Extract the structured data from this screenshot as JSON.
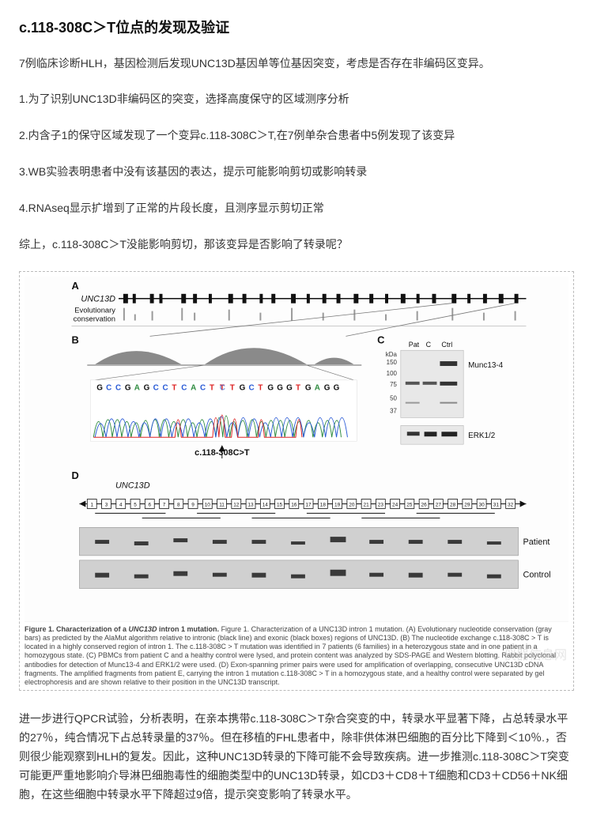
{
  "title": "c.118-308C＞T位点的发现及验证",
  "intro": "7例临床诊断HLH，基因检测后发现UNC13D基因单等位基因突变，考虑是否存在非编码区变异。",
  "points": [
    "1.为了识别UNC13D非编码区的突变，选择高度保守的区域测序分析",
    "2.内含子1的保守区域发现了一个变异c.118-308C＞T,在7例单杂合患者中5例发现了该变异",
    "3.WB实验表明患者中没有该基因的表达，提示可能影响剪切或影响转录",
    "4.RNAseq显示扩增到了正常的片段长度，且测序显示剪切正常"
  ],
  "summary": "综上，c.118-308C＞T没能影响剪切，那该变异是否影响了转录呢？",
  "figure": {
    "panelA": {
      "label": "A",
      "geneLabel": "UNC13D",
      "consLabel": "Evolutionary\nconservation"
    },
    "panelB": {
      "label": "B",
      "seq": "GCCGAGCCTCACTCTGCTGGGTGAGG",
      "locus": "c.118-308C>T",
      "baseColors": {
        "A": "#2e8b3f",
        "C": "#2a5bd6",
        "G": "#111",
        "T": "#d22"
      }
    },
    "panelC": {
      "label": "C",
      "lanes": [
        "Pat",
        "C",
        "Ctrl"
      ],
      "kDa": [
        150,
        100,
        75,
        50,
        37
      ],
      "bands": [
        "Munc13-4",
        "ERK1/2"
      ]
    },
    "panelD": {
      "label": "D",
      "geneLabel": "UNC13D",
      "exons": [
        1,
        3,
        4,
        5,
        6,
        7,
        8,
        9,
        10,
        11,
        12,
        13,
        14,
        15,
        16,
        17,
        18,
        19,
        20,
        21,
        23,
        24,
        25,
        26,
        27,
        28,
        29,
        30,
        31,
        32
      ],
      "rows": [
        "Patient",
        "Control"
      ]
    },
    "caption": "Figure 1. Characterization of a UNC13D intron 1 mutation. (A) Evolutionary nucleotide conservation (gray bars) as predicted by the AlaMut algorithm relative to intronic (black line) and exonic (black boxes) regions of UNC13D. (B) The nucleotide exchange c.118-308C > T is located in a highly conserved region of intron 1. The c.118-308C > T mutation was identified in 7 patients (6 families) in a heterozygous state and in one patient in a homozygous state. (C) PBMCs from patient C and a healthy control were lysed, and protein content was analyzed by SDS-PAGE and Western blotting. Rabbit polyclonal antibodies for detection of Munc13-4 and ERK1/2 were used. (D) Exon-spanning primer pairs were used for amplification of overlapping, consecutive UNC13D cDNA fragments. The amplified fragments from patient E, carrying the intron 1 mutation c.118-308C > T in a homozygous state, and a healthy control were separated by gel electrophoresis and are shown relative to their position in the UNC13D transcript.",
    "colors": {
      "lineGray": "#777",
      "lightGray": "#bfbfbf",
      "darkBar": "#111",
      "bandGray": "#4a4a4a",
      "gelBg": "#d0d0d0",
      "blotBg": "#e8e8e8"
    }
  },
  "conclusion": "进一步进行QPCR试验，分析表明，在亲本携带c.118-308C＞T杂合突变的中，转录水平显著下降，占总转录水平的27％，纯合情况下占总转录量的37％。但在移植的FHL患者中，除非供体淋巴细胞的百分比下降到＜10％.，否则很少能观察到HLH的复发。因此，这种UNC13D转录的下降可能不会导致疾病。进一步推测c.118-308C＞T突变可能更严重地影响介导淋巴细胞毒性的细胞类型中的UNC13D转录，如CD3＋CD8＋T细胞和CD3＋CD56＋NK细胞，在这些细胞中转录水平下降超过9倍，提示突变影响了转录水平。",
  "watermark": "仪器信息网"
}
